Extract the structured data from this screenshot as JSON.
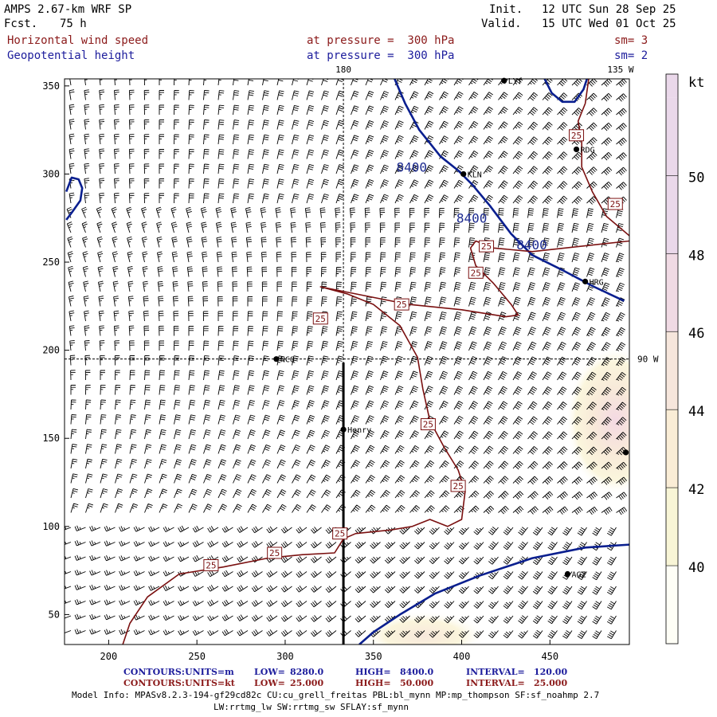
{
  "header": {
    "title": "AMPS 2.67-km WRF SP",
    "fcst_label": "Fcst.",
    "fcst_value": "75 h",
    "init_label": "Init.",
    "init_value": "12 UTC Sun 28 Sep 25",
    "valid_label": "Valid.",
    "valid_value": "15 UTC Wed 01 Oct 25",
    "field1_name": "Horizontal wind speed",
    "field1_level": "at pressure =  300 hPa",
    "field1_sm": "sm= 3",
    "field2_name": "Geopotential height",
    "field2_level": "at pressure =  300 hPa",
    "field2_sm": "sm= 2"
  },
  "chart_data": {
    "type": "contour-map",
    "title": "Horizontal wind speed / Geopotential height at 300 hPa",
    "xlim": [
      175,
      495
    ],
    "ylim": [
      33,
      354
    ],
    "x_ticks": [
      200,
      250,
      300,
      350,
      400,
      450
    ],
    "y_ticks": [
      50,
      100,
      150,
      200,
      250,
      300,
      350
    ],
    "meridian_labels": [
      {
        "label": "180",
        "x": 333,
        "y": 354
      },
      {
        "label": "135 W",
        "x": 490,
        "y": 354
      },
      {
        "label": "90 W",
        "x": 495,
        "y": 195
      }
    ],
    "reference_lines": {
      "vertical_x": 333,
      "horizontal_y": 195
    },
    "transect": {
      "x": 333,
      "y_from": 33,
      "y_to": 193
    },
    "stations": [
      {
        "name": "LYf",
        "x": 424,
        "y": 353
      },
      {
        "name": "RDG",
        "x": 465,
        "y": 314
      },
      {
        "name": "KLN",
        "x": 401,
        "y": 300
      },
      {
        "name": "HRG",
        "x": 470,
        "y": 239
      },
      {
        "name": "NCO",
        "x": 295,
        "y": 195
      },
      {
        "name": "Henry",
        "x": 333,
        "y": 155
      },
      {
        "name": "AGZ",
        "x": 460,
        "y": 73
      },
      {
        "name": "",
        "x": 493,
        "y": 142
      }
    ],
    "height_contours": {
      "units": "m",
      "labels": [
        "8400",
        "8400",
        "8400"
      ],
      "label_positions": [
        {
          "x": 363,
          "y": 304
        },
        {
          "x": 397,
          "y": 275
        },
        {
          "x": 431,
          "y": 260
        }
      ],
      "lines": [
        [
          [
            362,
            354
          ],
          [
            368,
            340
          ],
          [
            376,
            325
          ],
          [
            388,
            310
          ],
          [
            398,
            302
          ],
          [
            406,
            294
          ],
          [
            416,
            282
          ],
          [
            428,
            266
          ],
          [
            440,
            254
          ],
          [
            458,
            245
          ],
          [
            475,
            236
          ],
          [
            492,
            228
          ]
        ],
        [
          [
            176,
            290
          ],
          [
            179,
            298
          ],
          [
            183,
            297
          ],
          [
            185,
            292
          ],
          [
            184,
            285
          ],
          [
            179,
            278
          ],
          [
            176,
            274
          ]
        ],
        [
          [
            447,
            354
          ],
          [
            451,
            346
          ],
          [
            457,
            341
          ],
          [
            464,
            341
          ],
          [
            469,
            348
          ],
          [
            471,
            354
          ]
        ],
        [
          [
            500,
            90
          ],
          [
            470,
            88
          ],
          [
            440,
            82
          ],
          [
            410,
            72
          ],
          [
            385,
            62
          ],
          [
            365,
            50
          ],
          [
            350,
            40
          ],
          [
            342,
            33
          ]
        ]
      ]
    },
    "speed_contours": {
      "units": "kt",
      "label": "25",
      "label_positions": [
        {
          "x": 465,
          "y": 322
        },
        {
          "x": 487,
          "y": 283
        },
        {
          "x": 414,
          "y": 259
        },
        {
          "x": 408,
          "y": 244
        },
        {
          "x": 366,
          "y": 226
        },
        {
          "x": 320,
          "y": 218
        },
        {
          "x": 381,
          "y": 158
        },
        {
          "x": 398,
          "y": 123
        },
        {
          "x": 331,
          "y": 96
        },
        {
          "x": 294,
          "y": 85
        },
        {
          "x": 258,
          "y": 78
        }
      ],
      "lines": [
        [
          [
            495,
            265
          ],
          [
            482,
            276
          ],
          [
            474,
            290
          ],
          [
            468,
            304
          ],
          [
            468,
            318
          ],
          [
            466,
            330
          ],
          [
            470,
            340
          ],
          [
            472,
            354
          ]
        ],
        [
          [
            495,
            262
          ],
          [
            440,
            256
          ],
          [
            418,
            258
          ],
          [
            408,
            262
          ],
          [
            405,
            258
          ],
          [
            408,
            248
          ],
          [
            418,
            238
          ],
          [
            428,
            226
          ],
          [
            432,
            220
          ],
          [
            425,
            219
          ],
          [
            400,
            223
          ],
          [
            370,
            226
          ],
          [
            345,
            231
          ],
          [
            320,
            236
          ],
          [
            335,
            232
          ],
          [
            350,
            226
          ],
          [
            365,
            214
          ],
          [
            375,
            196
          ],
          [
            378,
            178
          ],
          [
            382,
            160
          ],
          [
            390,
            145
          ],
          [
            398,
            132
          ],
          [
            402,
            120
          ],
          [
            400,
            104
          ],
          [
            392,
            100
          ],
          [
            382,
            104
          ],
          [
            372,
            100
          ],
          [
            360,
            98
          ],
          [
            350,
            97
          ],
          [
            340,
            96
          ],
          [
            333,
            93
          ],
          [
            328,
            85
          ],
          [
            310,
            84
          ],
          [
            290,
            82
          ],
          [
            265,
            77
          ],
          [
            240,
            73
          ],
          [
            222,
            60
          ],
          [
            212,
            45
          ],
          [
            208,
            33
          ]
        ]
      ]
    },
    "wind_speed_shading": [
      {
        "center_x": 487,
        "center_y": 160,
        "radius_x": 28,
        "radius_y": 42,
        "level_kt": 46
      },
      {
        "center_x": 378,
        "center_y": 38,
        "radius_x": 36,
        "radius_y": 14,
        "level_kt": 44
      }
    ],
    "colorbar": {
      "unit": "kt",
      "levels": [
        40,
        42,
        44,
        46,
        48,
        50
      ],
      "band_colors": [
        "#fefef6",
        "#f8f5d6",
        "#faedd6",
        "#f6e6dc",
        "#f0dae4",
        "#ead8ea"
      ]
    }
  },
  "footer": {
    "line1_contours": "CONTOURS:",
    "line1_units": "UNITS=m",
    "line1_low": "LOW=",
    "line1_low_val": "8280.0",
    "line1_high": "HIGH=",
    "line1_high_val": "8400.0",
    "line1_interval": "INTERVAL=",
    "line1_interval_val": "120.00",
    "line2_contours": "CONTOURS:",
    "line2_units": "UNITS=kt",
    "line2_low": "LOW=",
    "line2_low_val": "25.000",
    "line2_high": "HIGH=",
    "line2_high_val": "50.000",
    "line2_interval": "INTERVAL=",
    "line2_interval_val": "25.000",
    "model_info": "Model Info: MPASv8.2.3-194-gf29cd82c CU:cu_grell_freitas PBL:bl_mynn MP:mp_thompson SF:sf_noahmp 2.7",
    "model_info2": "LW:rrtmg_lw SW:rrtmg_sw SFLAY:sf_mynn"
  },
  "colors": {
    "height_line": "#0a1f8f",
    "speed_line": "#7a1010",
    "barb": "#000000"
  }
}
